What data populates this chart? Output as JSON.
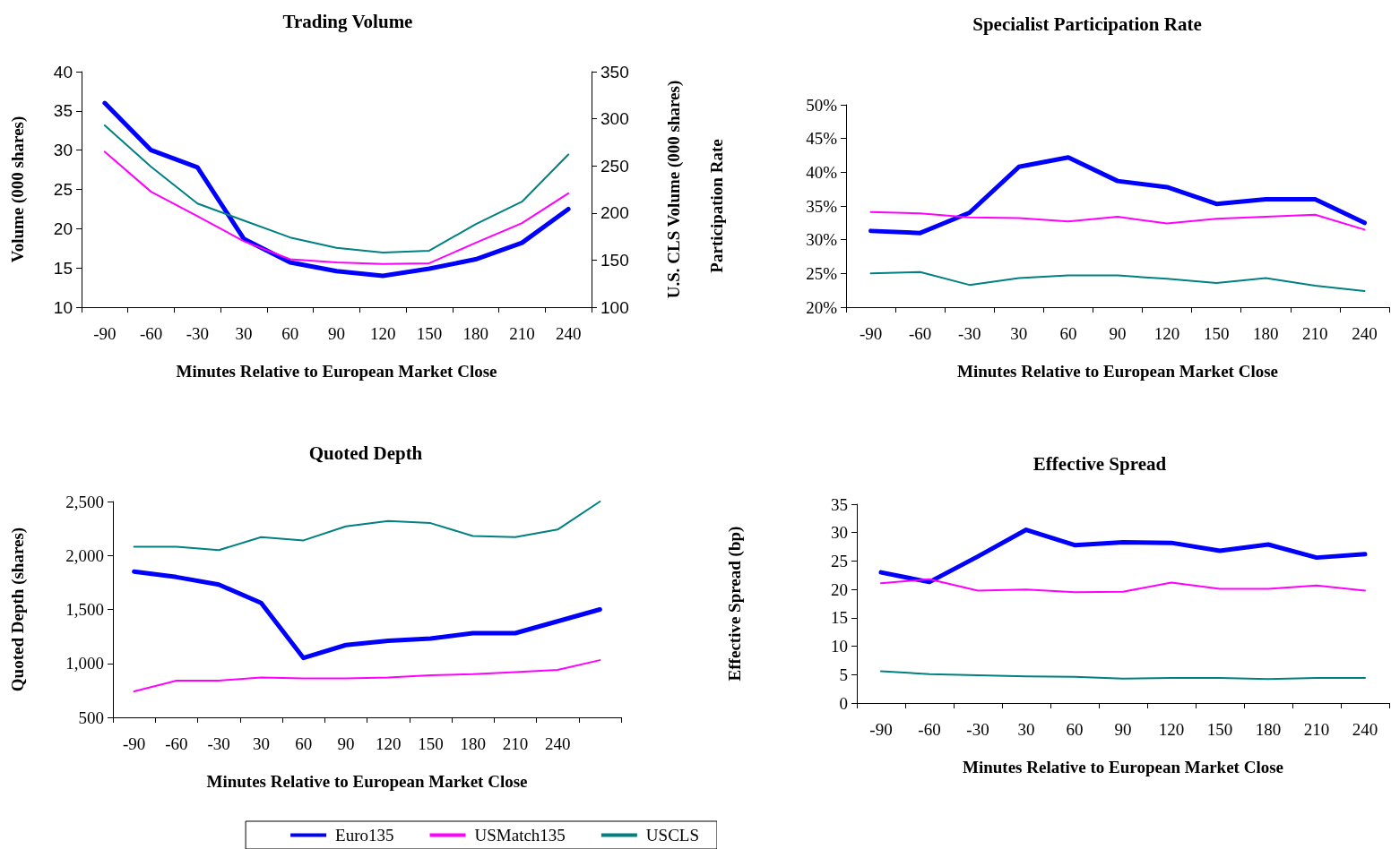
{
  "chart_data": [
    {
      "type": "line",
      "title": "Trading Volume",
      "xlabel": "Minutes Relative to European Market Close",
      "ylabel": "Volume (000 shares)",
      "y2label": "U.S. CLS Volume (000 shares)",
      "categories": [
        "-90",
        "-60",
        "-30",
        "30",
        "60",
        "90",
        "120",
        "150",
        "180",
        "210",
        "240"
      ],
      "series": [
        {
          "color": "#0000ff",
          "values": [
            36,
            30,
            27.8,
            18.7,
            15.7,
            14.6,
            14,
            14.9,
            16.1,
            18.2,
            22.5
          ]
        },
        {
          "color": "#ff00ff",
          "values": [
            29.8,
            24.7,
            21.6,
            18.4,
            16.1,
            15.7,
            15.5,
            15.6,
            18.2,
            20.7,
            24.5
          ]
        },
        {
          "color": "#008080",
          "axis": "y2",
          "values": [
            293,
            249,
            210,
            192,
            174,
            163,
            158,
            160,
            188,
            212,
            262
          ]
        }
      ],
      "ylim": [
        10,
        40
      ],
      "yticks": [
        10,
        15,
        20,
        25,
        30,
        35,
        40
      ],
      "y2lim": [
        100,
        350
      ],
      "y2ticks": [
        100,
        150,
        200,
        250,
        300,
        350
      ],
      "grid": false,
      "marker": "none",
      "line_style": "solid"
    },
    {
      "type": "line",
      "title": "Specialist Participation Rate",
      "xlabel": "Minutes Relative to European Market Close",
      "ylabel": "Participation Rate",
      "categories": [
        "-90",
        "-60",
        "-30",
        "30",
        "60",
        "90",
        "120",
        "150",
        "180",
        "210",
        "240"
      ],
      "series": [
        {
          "color": "#0000ff",
          "values": [
            31.3,
            31,
            34,
            40.8,
            42.2,
            38.7,
            37.8,
            35.3,
            36,
            36,
            32.5
          ]
        },
        {
          "color": "#ff00ff",
          "values": [
            34.1,
            33.9,
            33.3,
            33.2,
            32.7,
            33.4,
            32.4,
            33.1,
            33.4,
            33.7,
            31.5
          ]
        },
        {
          "color": "#008080",
          "values": [
            25,
            25.2,
            23.3,
            24.3,
            24.7,
            24.7,
            24.2,
            23.6,
            24.3,
            23.2,
            22.4
          ]
        }
      ],
      "ylim": [
        20,
        50
      ],
      "yticks": [
        {
          "value": 20,
          "label": "20%"
        },
        {
          "value": 25,
          "label": "25%"
        },
        {
          "value": 30,
          "label": "30%"
        },
        {
          "value": 35,
          "label": "35%"
        },
        {
          "value": 40,
          "label": "40%"
        },
        {
          "value": 45,
          "label": "45%"
        },
        {
          "value": 50,
          "label": "50%"
        }
      ],
      "grid": false,
      "marker": "none",
      "line_style": "solid"
    },
    {
      "type": "line",
      "title": "Quoted Depth",
      "xlabel": "Minutes Relative to European Market Close",
      "ylabel": "Quoted Depth (shares)",
      "categories": [
        "-90",
        "-60",
        "-30",
        "30",
        "60",
        "90",
        "120",
        "150",
        "180",
        "210",
        "240",
        null
      ],
      "series": [
        {
          "name": "Euro135",
          "color": "#0000ff",
          "values": [
            1850,
            1800,
            1730,
            1560,
            1050,
            1170,
            1210,
            1230,
            1280,
            1280,
            1390,
            1500
          ]
        },
        {
          "name": "USMatch135",
          "color": "#ff00ff",
          "values": [
            740,
            840,
            840,
            870,
            860,
            860,
            870,
            890,
            900,
            920,
            940,
            1030
          ]
        },
        {
          "name": "USCLS",
          "color": "#008080",
          "values": [
            2080,
            2080,
            2050,
            2170,
            2140,
            2270,
            2320,
            2300,
            2180,
            2170,
            2240,
            2500
          ]
        }
      ],
      "ylim": [
        500,
        2500
      ],
      "yticks": [
        500,
        {
          "value": 1000,
          "label": "1,000"
        },
        {
          "value": 1500,
          "label": "1,500"
        },
        {
          "value": 2000,
          "label": "2,000"
        },
        {
          "value": 2500,
          "label": "2,500"
        }
      ],
      "grid": false,
      "legend": "bottom",
      "marker": "none",
      "line_style": "solid"
    },
    {
      "type": "line",
      "title": "Effective Spread",
      "xlabel": "Minutes Relative to European Market Close",
      "ylabel": "Effective Spread (bp)",
      "categories": [
        "-90",
        "-60",
        "-30",
        "30",
        "60",
        "90",
        "120",
        "150",
        "180",
        "210",
        "240"
      ],
      "series": [
        {
          "color": "#0000ff",
          "values": [
            23,
            21.3,
            25.8,
            30.5,
            27.8,
            28.3,
            28.2,
            26.8,
            27.9,
            25.6,
            26.2
          ]
        },
        {
          "color": "#ff00ff",
          "values": [
            21.1,
            21.8,
            19.8,
            20,
            19.5,
            19.6,
            21.2,
            20.1,
            20.1,
            20.7,
            19.8
          ]
        },
        {
          "color": "#008080",
          "values": [
            5.6,
            5.1,
            4.9,
            4.7,
            4.6,
            4.3,
            4.4,
            4.4,
            4.2,
            4.4,
            4.4
          ]
        }
      ],
      "ylim": [
        0,
        35
      ],
      "yticks": [
        0,
        5,
        10,
        15,
        20,
        25,
        30,
        35
      ],
      "grid": false,
      "marker": "none",
      "line_style": "solid"
    }
  ]
}
